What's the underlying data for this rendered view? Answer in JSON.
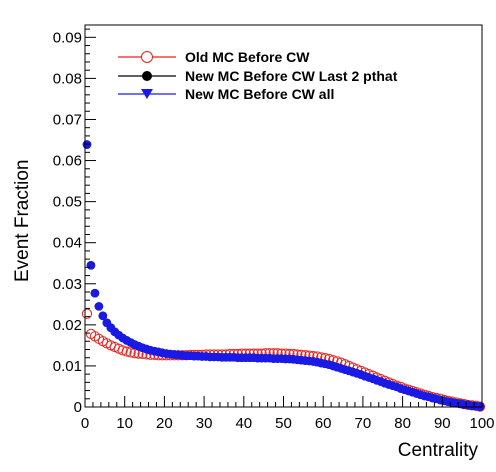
{
  "colors": {
    "old_mc": "#e8211d",
    "new_mc_last2": "#000000",
    "new_mc_all": "#1a1ae6"
  },
  "chart_data": {
    "type": "scatter",
    "title": "",
    "xlabel": "Centrality",
    "ylabel": "Event Fraction",
    "xlim": [
      0,
      100
    ],
    "ylim": [
      0,
      0.093
    ],
    "xticks": [
      0,
      10,
      20,
      30,
      40,
      50,
      60,
      70,
      80,
      90,
      100
    ],
    "xtick_labels": [
      "0",
      "10",
      "20",
      "30",
      "40",
      "50",
      "60",
      "70",
      "80",
      "90",
      "100"
    ],
    "yticks": [
      0,
      0.01,
      0.02,
      0.03,
      0.04,
      0.05,
      0.06,
      0.07,
      0.08,
      0.09
    ],
    "ytick_labels": [
      "0",
      "0.01",
      "0.02",
      "0.03",
      "0.04",
      "0.05",
      "0.06",
      "0.07",
      "0.08",
      "0.09"
    ],
    "grid": false,
    "legend_position": "top-center",
    "series": [
      {
        "name": "Old MC Before CW",
        "marker": "open-circle",
        "color": "#e8211d",
        "x": [
          0.5,
          1.5,
          2.5,
          3.5,
          4.5,
          5.5,
          6.5,
          7.5,
          8.5,
          9.5,
          10.5,
          11.5,
          12.5,
          13.5,
          14.5,
          15.5,
          16.5,
          17.5,
          18.5,
          19.5,
          20.5,
          21.5,
          22.5,
          23.5,
          24.5,
          25.5,
          26.5,
          27.5,
          28.5,
          29.5,
          30.5,
          31.5,
          32.5,
          33.5,
          34.5,
          35.5,
          36.5,
          37.5,
          38.5,
          39.5,
          40.5,
          41.5,
          42.5,
          43.5,
          44.5,
          45.5,
          46.5,
          47.5,
          48.5,
          49.5,
          50.5,
          51.5,
          52.5,
          53.5,
          54.5,
          55.5,
          56.5,
          57.5,
          58.5,
          59.5,
          60.5,
          61.5,
          62.5,
          63.5,
          64.5,
          65.5,
          66.5,
          67.5,
          68.5,
          69.5,
          70.5,
          71.5,
          72.5,
          73.5,
          74.5,
          75.5,
          76.5,
          77.5,
          78.5,
          79.5,
          80.5,
          81.5,
          82.5,
          83.5,
          84.5,
          85.5,
          86.5,
          87.5,
          88.5,
          89.5,
          90.5,
          91.5,
          92.5,
          93.5,
          94.5,
          95.5,
          96.5,
          97.5,
          98.5,
          99.5
        ],
        "y": [
          0.0227,
          0.0178,
          0.0172,
          0.0166,
          0.016,
          0.0155,
          0.015,
          0.0146,
          0.0142,
          0.0138,
          0.0135,
          0.0133,
          0.0131,
          0.013,
          0.0129,
          0.0128,
          0.0127,
          0.0127,
          0.0126,
          0.0126,
          0.0126,
          0.0126,
          0.0126,
          0.0126,
          0.0126,
          0.0126,
          0.0127,
          0.0127,
          0.0127,
          0.0127,
          0.0128,
          0.0128,
          0.0128,
          0.0128,
          0.0128,
          0.0128,
          0.0129,
          0.0129,
          0.0129,
          0.013,
          0.013,
          0.013,
          0.013,
          0.013,
          0.013,
          0.0131,
          0.0131,
          0.0131,
          0.0131,
          0.013,
          0.013,
          0.0129,
          0.0129,
          0.0128,
          0.0127,
          0.0126,
          0.0125,
          0.0124,
          0.0123,
          0.0121,
          0.0119,
          0.0117,
          0.0114,
          0.0111,
          0.0108,
          0.0104,
          0.01,
          0.0096,
          0.0092,
          0.0088,
          0.0084,
          0.008,
          0.0076,
          0.0072,
          0.0068,
          0.0064,
          0.006,
          0.0056,
          0.0052,
          0.0049,
          0.0045,
          0.0042,
          0.0039,
          0.0036,
          0.0033,
          0.003,
          0.0027,
          0.0024,
          0.0022,
          0.002,
          0.0017,
          0.0015,
          0.0013,
          0.0011,
          0.0009,
          0.0007,
          0.0005,
          0.0004,
          0.0003,
          0.0001
        ]
      },
      {
        "name": "New MC Before CW Last 2 pthat",
        "marker": "filled-circle",
        "color": "#000000",
        "x": [
          0.5,
          1.5,
          2.5,
          3.5,
          4.5,
          5.5,
          6.5,
          7.5,
          8.5,
          9.5,
          10.5,
          11.5,
          12.5,
          13.5,
          14.5,
          15.5,
          16.5,
          17.5,
          18.5,
          19.5,
          20.5,
          21.5,
          22.5,
          23.5,
          24.5,
          25.5,
          26.5,
          27.5,
          28.5,
          29.5,
          30.5,
          31.5,
          32.5,
          33.5,
          34.5,
          35.5,
          36.5,
          37.5,
          38.5,
          39.5,
          40.5,
          41.5,
          42.5,
          43.5,
          44.5,
          45.5,
          46.5,
          47.5,
          48.5,
          49.5,
          50.5,
          51.5,
          52.5,
          53.5,
          54.5,
          55.5,
          56.5,
          57.5,
          58.5,
          59.5,
          60.5,
          61.5,
          62.5,
          63.5,
          64.5,
          65.5,
          66.5,
          67.5,
          68.5,
          69.5,
          70.5,
          71.5,
          72.5,
          73.5,
          74.5,
          75.5,
          76.5,
          77.5,
          78.5,
          79.5,
          80.5,
          81.5,
          82.5,
          83.5,
          84.5,
          85.5,
          86.5,
          87.5,
          88.5,
          89.5,
          90.5,
          91.5,
          92.5,
          93.5,
          94.5,
          95.5,
          96.5,
          97.5,
          98.5,
          99.5
        ],
        "y": [
          0.0639,
          0.0345,
          0.0277,
          0.0245,
          0.0222,
          0.0205,
          0.0193,
          0.0183,
          0.0175,
          0.0168,
          0.0162,
          0.0157,
          0.0152,
          0.0148,
          0.0144,
          0.0141,
          0.0138,
          0.0136,
          0.0134,
          0.0132,
          0.013,
          0.0129,
          0.0128,
          0.0127,
          0.0126,
          0.0125,
          0.0125,
          0.0124,
          0.0124,
          0.0123,
          0.0123,
          0.0122,
          0.0122,
          0.0122,
          0.0121,
          0.0121,
          0.0121,
          0.0121,
          0.012,
          0.012,
          0.012,
          0.012,
          0.012,
          0.0119,
          0.0119,
          0.0119,
          0.0119,
          0.0118,
          0.0118,
          0.0118,
          0.0117,
          0.0117,
          0.0116,
          0.0115,
          0.0114,
          0.0113,
          0.0112,
          0.0111,
          0.0109,
          0.0107,
          0.0105,
          0.0103,
          0.01,
          0.0097,
          0.0094,
          0.0091,
          0.0088,
          0.0085,
          0.0082,
          0.0079,
          0.0075,
          0.0072,
          0.0069,
          0.0065,
          0.0062,
          0.0058,
          0.0055,
          0.0052,
          0.0049,
          0.0045,
          0.0042,
          0.0039,
          0.0036,
          0.0033,
          0.003,
          0.0027,
          0.0025,
          0.0022,
          0.002,
          0.0017,
          0.0015,
          0.0013,
          0.0011,
          0.0009,
          0.0008,
          0.0006,
          0.0005,
          0.0003,
          0.0002,
          0.0001
        ]
      },
      {
        "name": "New MC Before CW all",
        "marker": "filled-circle",
        "color": "#1a1ae6",
        "x": [
          0.5,
          1.5,
          2.5,
          3.5,
          4.5,
          5.5,
          6.5,
          7.5,
          8.5,
          9.5,
          10.5,
          11.5,
          12.5,
          13.5,
          14.5,
          15.5,
          16.5,
          17.5,
          18.5,
          19.5,
          20.5,
          21.5,
          22.5,
          23.5,
          24.5,
          25.5,
          26.5,
          27.5,
          28.5,
          29.5,
          30.5,
          31.5,
          32.5,
          33.5,
          34.5,
          35.5,
          36.5,
          37.5,
          38.5,
          39.5,
          40.5,
          41.5,
          42.5,
          43.5,
          44.5,
          45.5,
          46.5,
          47.5,
          48.5,
          49.5,
          50.5,
          51.5,
          52.5,
          53.5,
          54.5,
          55.5,
          56.5,
          57.5,
          58.5,
          59.5,
          60.5,
          61.5,
          62.5,
          63.5,
          64.5,
          65.5,
          66.5,
          67.5,
          68.5,
          69.5,
          70.5,
          71.5,
          72.5,
          73.5,
          74.5,
          75.5,
          76.5,
          77.5,
          78.5,
          79.5,
          80.5,
          81.5,
          82.5,
          83.5,
          84.5,
          85.5,
          86.5,
          87.5,
          88.5,
          89.5,
          90.5,
          91.5,
          92.5,
          93.5,
          94.5,
          95.5,
          96.5,
          97.5,
          98.5,
          99.5
        ],
        "y": [
          0.0639,
          0.0345,
          0.0277,
          0.0245,
          0.0222,
          0.0205,
          0.0193,
          0.0183,
          0.0175,
          0.0168,
          0.0162,
          0.0157,
          0.0152,
          0.0148,
          0.0144,
          0.0141,
          0.0138,
          0.0136,
          0.0134,
          0.0132,
          0.013,
          0.0129,
          0.0128,
          0.0127,
          0.0126,
          0.0125,
          0.0125,
          0.0124,
          0.0124,
          0.0123,
          0.0123,
          0.0122,
          0.0122,
          0.0122,
          0.0121,
          0.0121,
          0.0121,
          0.0121,
          0.012,
          0.012,
          0.012,
          0.012,
          0.012,
          0.0119,
          0.0119,
          0.0119,
          0.0119,
          0.0118,
          0.0118,
          0.0118,
          0.0117,
          0.0117,
          0.0116,
          0.0115,
          0.0114,
          0.0113,
          0.0112,
          0.0111,
          0.0109,
          0.0107,
          0.0105,
          0.0103,
          0.01,
          0.0097,
          0.0094,
          0.0091,
          0.0088,
          0.0085,
          0.0082,
          0.0079,
          0.0075,
          0.0072,
          0.0069,
          0.0065,
          0.0062,
          0.0058,
          0.0055,
          0.0052,
          0.0049,
          0.0045,
          0.0042,
          0.0039,
          0.0036,
          0.0033,
          0.003,
          0.0027,
          0.0025,
          0.0022,
          0.002,
          0.0017,
          0.0015,
          0.0013,
          0.0011,
          0.0009,
          0.0008,
          0.0006,
          0.0005,
          0.0003,
          0.0002,
          0.0001
        ]
      }
    ]
  }
}
